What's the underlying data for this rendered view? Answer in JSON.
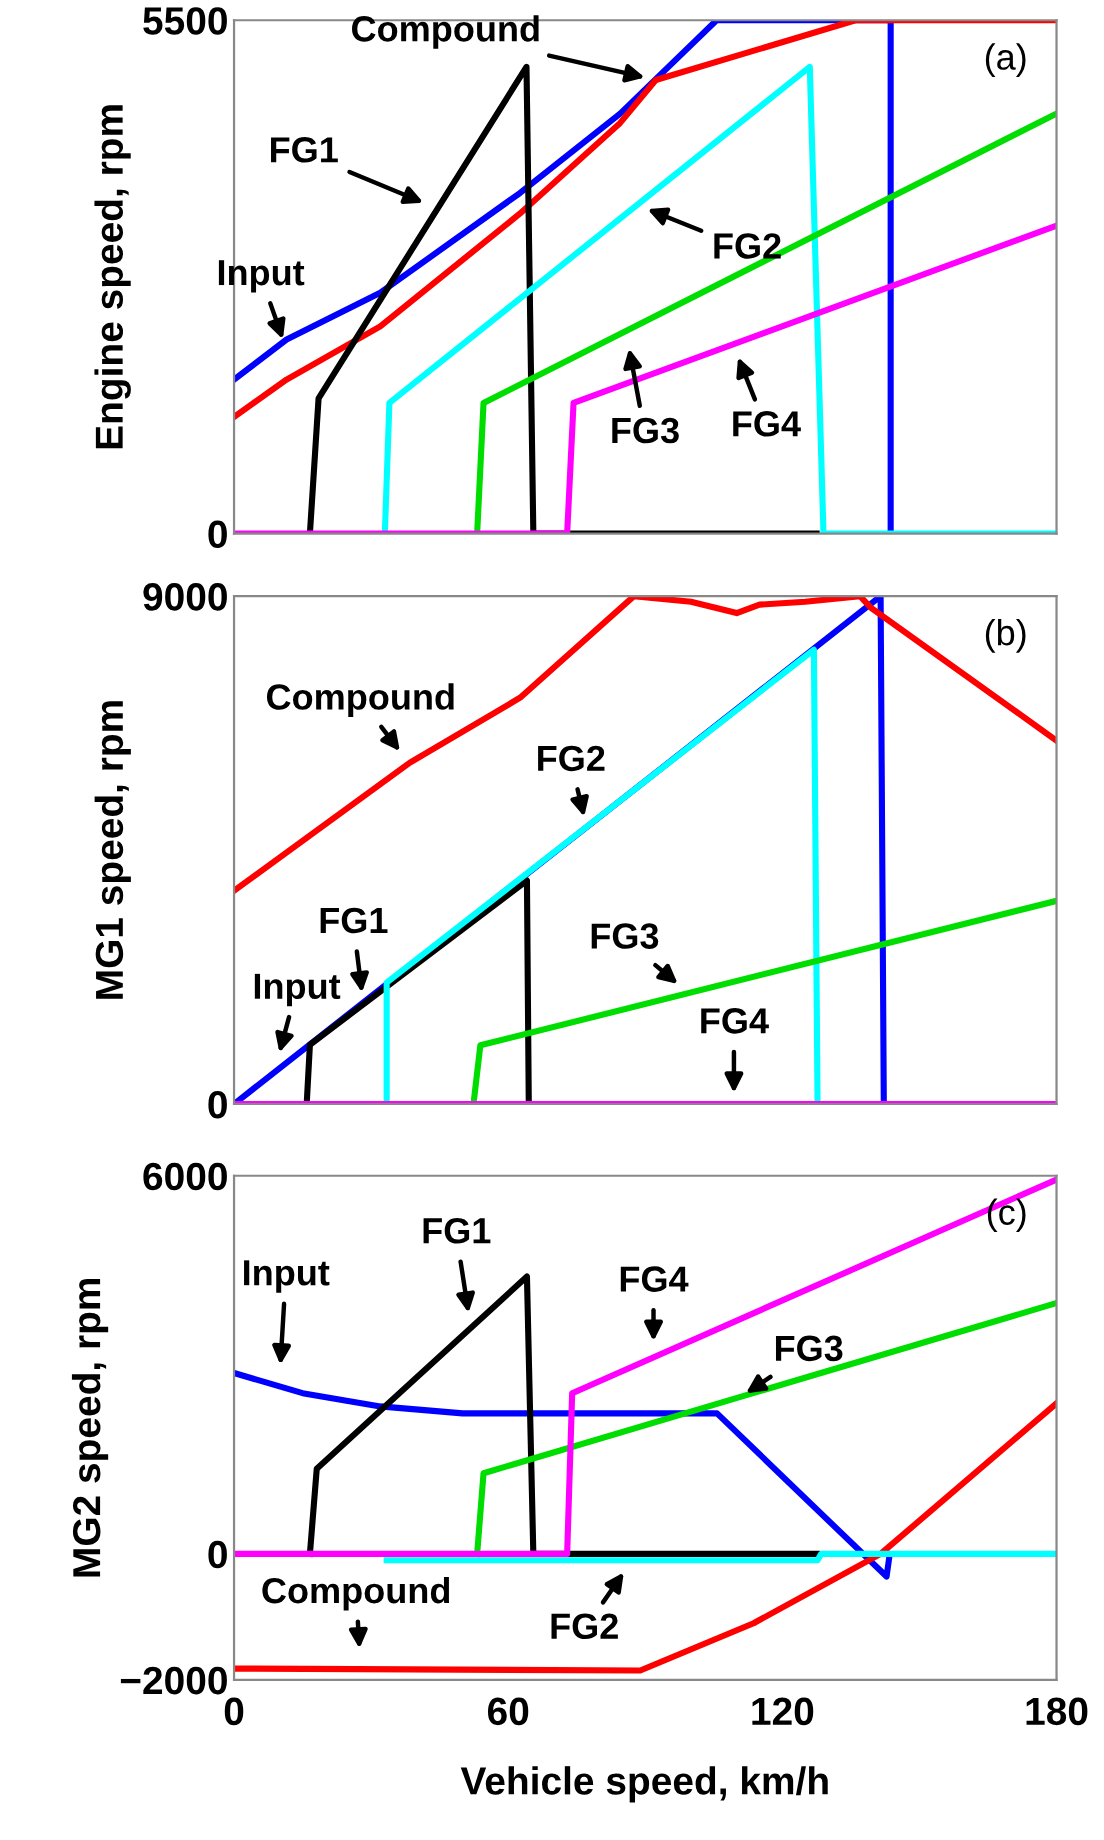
{
  "chart_data": [
    {
      "type": "line",
      "ylabel": "Engine speed, rpm",
      "xlim": [
        0,
        180
      ],
      "ylim": [
        0,
        5500
      ],
      "yticks": [
        0,
        5500
      ],
      "tick_labels": "y",
      "grid": false,
      "legend": false,
      "series": [
        {
          "color": "#0000ff",
          "x": [
            0,
            11.5,
            32,
            62.6,
            84.5,
            105.6,
            143.7,
            143.7
          ],
          "values": [
            1650,
            2080,
            2580,
            3650,
            4500,
            5500,
            5500,
            0
          ]
        },
        {
          "color": "#ff0000",
          "x": [
            0,
            11.5,
            32,
            62.6,
            84.5,
            92.3,
            136,
            180
          ],
          "values": [
            1250,
            1650,
            2220,
            3430,
            4400,
            4860,
            5500,
            5500
          ]
        },
        {
          "color": "#000000",
          "x": [
            16.6,
            18.5,
            64,
            65.5,
            127.5
          ],
          "values": [
            0,
            1450,
            5000,
            0,
            0
          ]
        },
        {
          "color": "#00ffff",
          "x": [
            33,
            34,
            126,
            129,
            180
          ],
          "values": [
            0,
            1400,
            5000,
            0,
            0
          ]
        },
        {
          "color": "#00dd00",
          "x": [
            53.2,
            54.6,
            180
          ],
          "values": [
            0,
            1400,
            4500
          ]
        },
        {
          "color": "#ff00ff",
          "x": [
            0,
            72.9,
            74.3,
            180
          ],
          "values": [
            0,
            0,
            1400,
            3300
          ]
        }
      ],
      "annotations": [
        "(a)",
        {
          "text": "Compound",
          "x": 92.3,
          "y": 4860
        },
        {
          "text": "FG1",
          "x": 43.7,
          "y": 3500
        },
        {
          "text": "Input",
          "x": 11.5,
          "y": 1970
        },
        {
          "text": "FG2",
          "x": 88.2,
          "y": 3520
        },
        {
          "text": "FG3",
          "x": 86,
          "y": 2100
        },
        {
          "text": "FG4",
          "x": 109.4,
          "y": 2000
        }
      ]
    },
    {
      "type": "line",
      "ylabel": "MG1 speed, rpm",
      "xlim": [
        0,
        180
      ],
      "ylim": [
        0,
        9000
      ],
      "yticks": [
        0,
        9000
      ],
      "tick_labels": "y",
      "grid": false,
      "legend": false,
      "series": [
        {
          "color": "#0000ff",
          "x": [
            0,
            141.5,
            142.2
          ],
          "values": [
            0,
            9000,
            0
          ]
        },
        {
          "color": "#ff0000",
          "x": [
            0,
            38.5,
            62.6,
            87.5,
            100,
            110,
            115,
            125,
            137,
            139.3,
            180
          ],
          "values": [
            3780,
            6050,
            7200,
            9000,
            8900,
            8700,
            8850,
            8900,
            9000,
            8800,
            6440
          ]
        },
        {
          "color": "#000000",
          "x": [
            15.9,
            16.6,
            64.1,
            64.5
          ],
          "values": [
            0,
            1050,
            3960,
            0
          ]
        },
        {
          "color": "#00ffff",
          "x": [
            33.4,
            33.4,
            126.9,
            127.7
          ],
          "values": [
            0,
            2150,
            8050,
            0
          ]
        },
        {
          "color": "#00dd00",
          "x": [
            52.4,
            53.9,
            180
          ],
          "values": [
            0,
            1040,
            3600
          ]
        },
        {
          "color": "#ff00ff",
          "x": [
            0,
            180
          ],
          "values": [
            0,
            0
          ]
        }
      ],
      "annotations": [
        "(b)",
        {
          "text": "Compound",
          "x": 37.8,
          "y": 6095
        },
        {
          "text": "FG2",
          "x": 77.2,
          "y": 4900
        },
        {
          "text": "FG1",
          "x": 28.3,
          "y": 1780
        },
        {
          "text": "Input",
          "x": 9.3,
          "y": 720
        },
        {
          "text": "FG3",
          "x": 99,
          "y": 2000
        },
        {
          "text": "FG4",
          "x": 109.4,
          "y": 0
        }
      ]
    },
    {
      "type": "line",
      "ylabel": "MG2 speed, rpm",
      "xlabel": "Vehicle speed, km/h",
      "xlim": [
        0,
        180
      ],
      "xticks": [
        0,
        60,
        120,
        180
      ],
      "ylim": [
        -2000,
        6000
      ],
      "yticks": [
        -2000,
        0,
        6000
      ],
      "grid": false,
      "legend": false,
      "series": [
        {
          "color": "#0000ff",
          "x": [
            0,
            15,
            32,
            50,
            105.7,
            142.8,
            143.5
          ],
          "values": [
            2870,
            2550,
            2340,
            2230,
            2230,
            -360,
            0
          ]
        },
        {
          "color": "#ff0000",
          "x": [
            0,
            88.9,
            113.7,
            141.5,
            180
          ],
          "values": [
            -1820,
            -1850,
            -1100,
            0,
            2390
          ]
        },
        {
          "color": "#000000",
          "x": [
            16.6,
            18.1,
            64.1,
            65.5,
            127.6
          ],
          "values": [
            0,
            1350,
            4400,
            0,
            0
          ]
        },
        {
          "color": "#00ffff",
          "x": [
            33.4,
            127.7,
            128.5,
            180
          ],
          "values": [
            -100,
            -100,
            0,
            0
          ]
        },
        {
          "color": "#00dd00",
          "x": [
            53.2,
            54.6,
            180
          ],
          "values": [
            0,
            1280,
            3980
          ]
        },
        {
          "color": "#ff00ff",
          "x": [
            0,
            72.9,
            74,
            180
          ],
          "values": [
            0,
            0,
            2550,
            5940
          ]
        }
      ],
      "annotations": [
        "(c)",
        {
          "text": "Input",
          "x": 10,
          "y": 2825
        },
        {
          "text": "FG1",
          "x": 51.7,
          "y": 3650
        },
        {
          "text": "FG4",
          "x": 91.8,
          "y": 3200
        },
        {
          "text": "FG3",
          "x": 110,
          "y": 2450
        },
        {
          "text": "Compound",
          "x": 27.6,
          "y": -1680
        },
        {
          "text": "FG2",
          "x": 86.7,
          "y": -150
        }
      ]
    }
  ]
}
